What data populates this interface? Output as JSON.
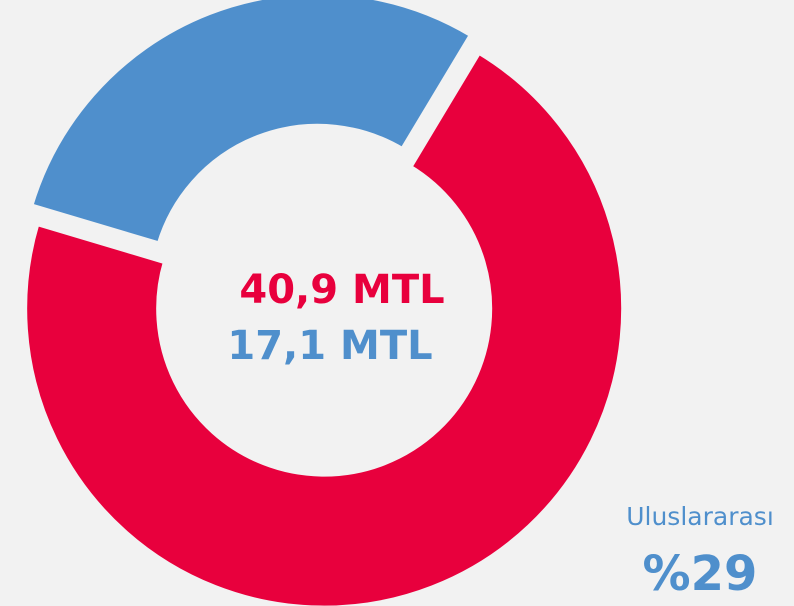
{
  "chart_data": {
    "type": "donut",
    "categories": [
      null,
      "Uluslararası"
    ],
    "values": [
      71,
      29
    ],
    "value_labels": [
      null,
      "%29"
    ],
    "colors": [
      "#e8003d",
      "#4f8fcc"
    ],
    "center_labels": [
      "40,9 MTL",
      "17,1 MTL"
    ]
  }
}
